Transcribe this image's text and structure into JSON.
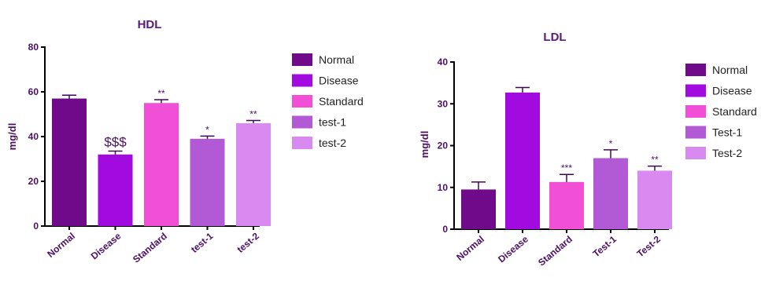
{
  "chart_data": [
    {
      "type": "bar",
      "title": "HDL",
      "xlabel": "",
      "ylabel": "mg/dl",
      "ylim": [
        0,
        80
      ],
      "yticks": [
        "0",
        "20",
        "40",
        "60",
        "80"
      ],
      "categories": [
        "Normal",
        "Disease",
        "Standard",
        "test-1",
        "test-2"
      ],
      "values": [
        57,
        32,
        55,
        39,
        46
      ],
      "errors": [
        1.5,
        1.5,
        1.5,
        1.2,
        1.2
      ],
      "annotations": [
        "",
        "$$$",
        "**",
        "*",
        "**"
      ],
      "colors": [
        "#6f0a8a",
        "#a10be0",
        "#f04fd6",
        "#b25ad6",
        "#d98af0"
      ],
      "legend": [
        "Normal",
        "Disease",
        "Standard",
        "test-1",
        "test-2"
      ],
      "legend_position": "right",
      "grid": false
    },
    {
      "type": "bar",
      "title": "LDL",
      "xlabel": "",
      "ylabel": "mg/dl",
      "ylim": [
        0,
        40
      ],
      "yticks": [
        "0",
        "10",
        "20",
        "30",
        "40"
      ],
      "categories": [
        "Normal",
        "Disease",
        "Standard",
        "Test-1",
        "Test-2"
      ],
      "values": [
        9.5,
        32.7,
        11.3,
        17,
        14
      ],
      "errors": [
        1.8,
        1.2,
        1.8,
        2,
        1.1
      ],
      "annotations": [
        "",
        "",
        "***",
        "*",
        "**"
      ],
      "colors": [
        "#6f0a8a",
        "#a10be0",
        "#f04fd6",
        "#b25ad6",
        "#d98af0"
      ],
      "legend": [
        "Normal",
        "Disease",
        "Standard",
        "Test-1",
        "Test-2"
      ],
      "legend_position": "right",
      "grid": false
    }
  ]
}
